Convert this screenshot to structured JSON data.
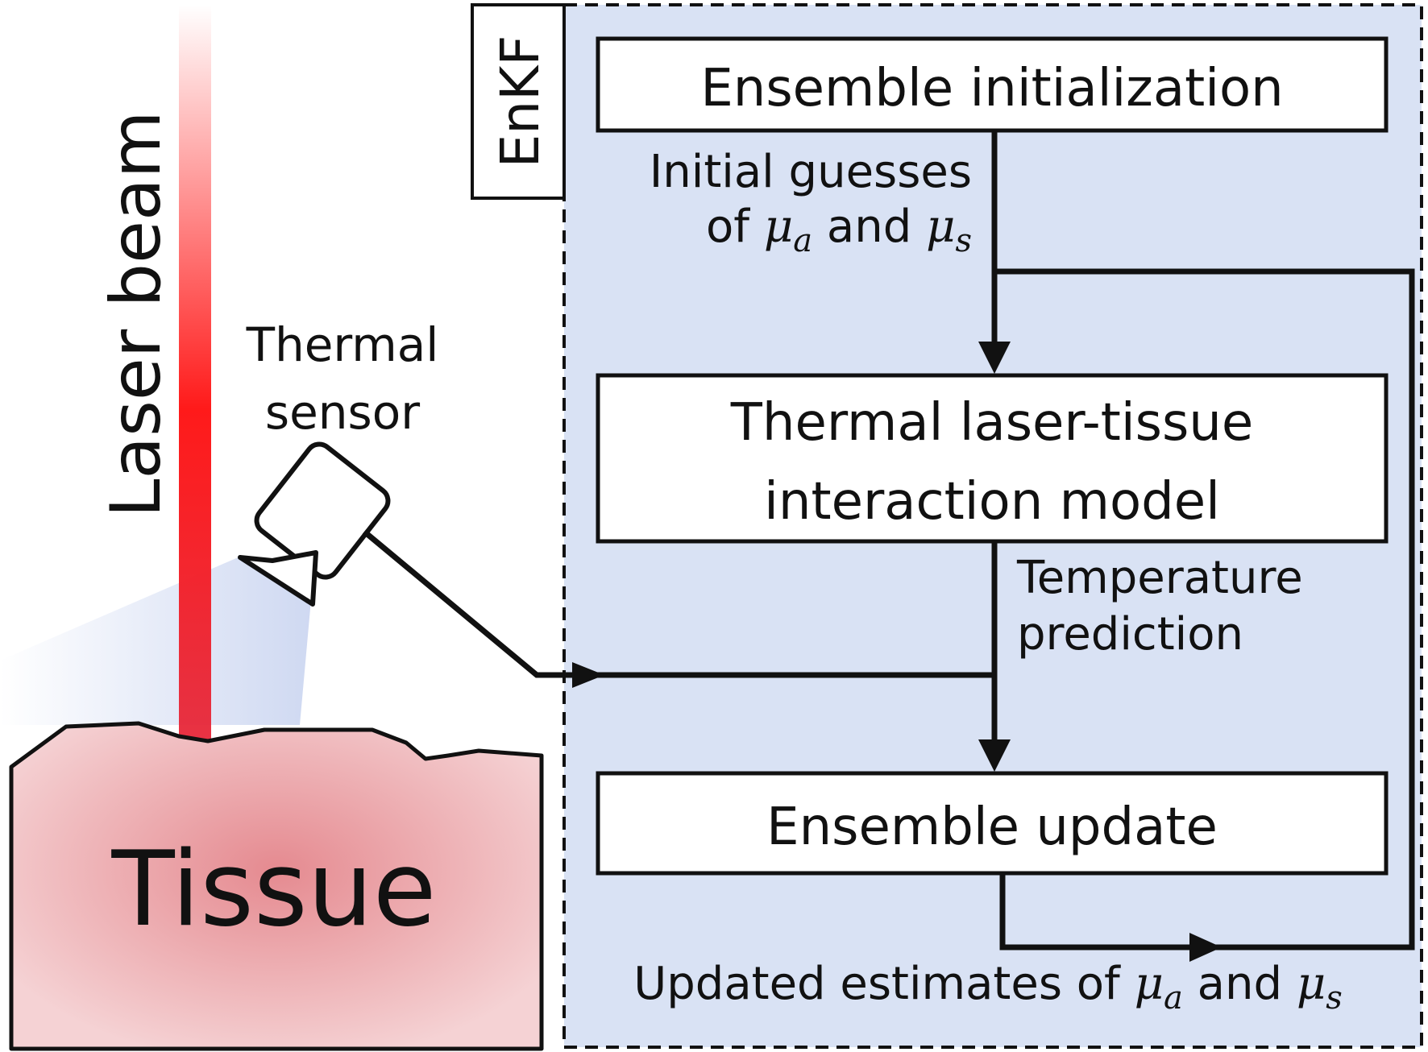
{
  "laser": {
    "label": "Laser beam",
    "color": "#ff1a1a"
  },
  "sensor": {
    "label_line1": "Thermal",
    "label_line2": "sensor"
  },
  "tissue": {
    "label": "Tissue",
    "fill_core": "#e58a90",
    "fill_edge": "#f5d2d4"
  },
  "enkf": {
    "label": "EnKF",
    "panel_color": "#d9e2f4"
  },
  "boxes": {
    "init": "Ensemble initialization",
    "model_line1": "Thermal laser-tissue",
    "model_line2": "interaction model",
    "update": "Ensemble update"
  },
  "edges": {
    "initial_line1": "Initial guesses",
    "initial_of": "of ",
    "initial_and": " and ",
    "temp_line1": "Temperature",
    "temp_line2": "prediction",
    "updated_prefix": "Updated estimates of ",
    "updated_and": " and "
  },
  "symbols": {
    "mu": "μ",
    "a": "a",
    "s": "s"
  }
}
